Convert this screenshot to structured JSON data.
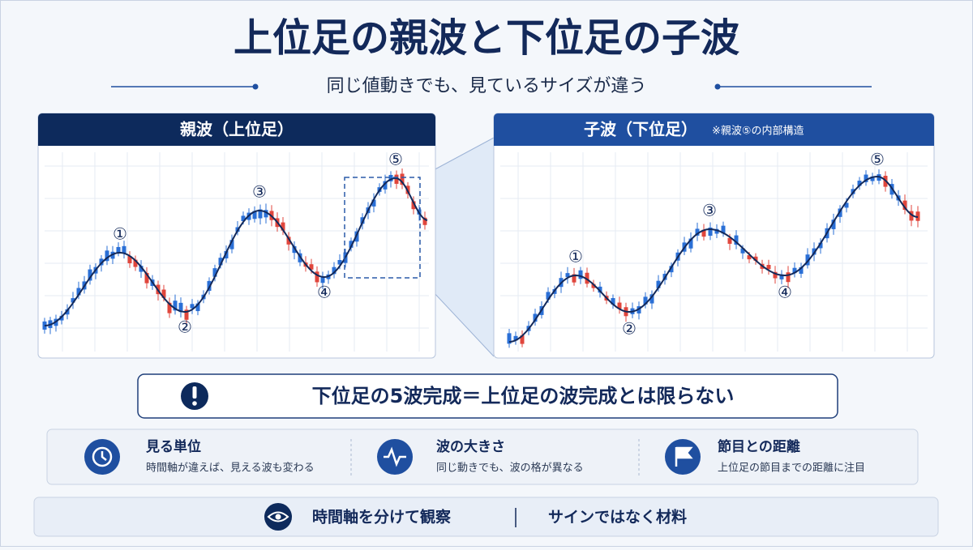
{
  "title": "上位足の親波と下位足の子波",
  "subtitle": "同じ値動きでも、見ているサイズが違う",
  "panels": [
    {
      "title": "親波（上位足）",
      "labels": [
        "①",
        "②",
        "③",
        "④",
        "⑤"
      ]
    },
    {
      "title": "子波（下位足）",
      "note": "※親波⑤の内部構造",
      "labels": [
        "①",
        "②",
        "③",
        "④",
        "⑤"
      ]
    }
  ],
  "callout": "下位足の5波完成＝上位足の波完成とは限らない",
  "points": [
    {
      "title": "見る単位",
      "text": "時間軸が違えば、見える波も変わる"
    },
    {
      "title": "波の大きさ",
      "text": "同じ動きでも、波の格が異なる"
    },
    {
      "title": "節目との距離",
      "text": "上位足の節目までの距離に注目"
    }
  ],
  "footer": [
    "時間軸を分けて観察",
    "サインではなく材料"
  ]
}
